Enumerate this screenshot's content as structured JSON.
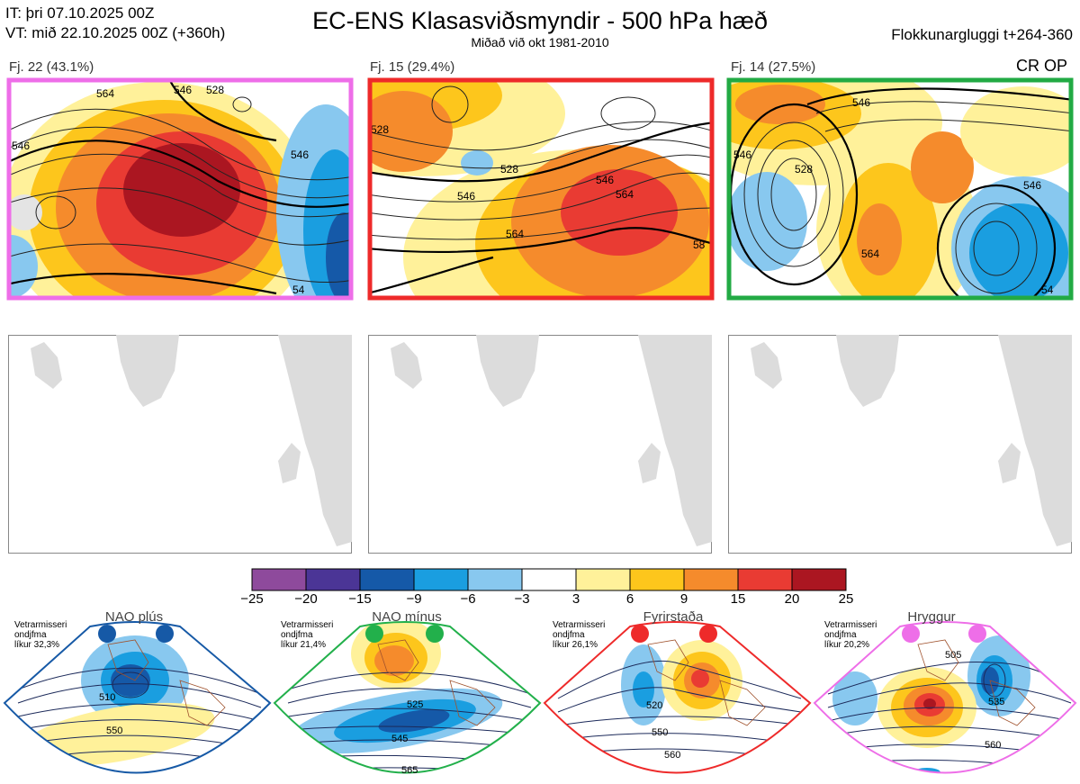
{
  "header": {
    "it_line": "IT: þri 07.10.2025 00Z",
    "vt_line": "VT: mið 22.10.2025 00Z  (+360h)",
    "title": "EC-ENS Klasasviðsmyndir - 500 hPa hæð",
    "subtitle": "Miðað við okt 1981-2010",
    "window": "Flokkunargluggi t+264-360"
  },
  "clusters": [
    {
      "label": "Fj. 22 (43.1%)",
      "frame_color": "#ee6ee8",
      "contour_labels": [
        "546",
        "564",
        "546",
        "546",
        "54",
        "528"
      ]
    },
    {
      "label": "Fj. 15 (29.4%)",
      "frame_color": "#ee2a2a",
      "contour_labels": [
        "528",
        "528",
        "546",
        "546",
        "564",
        "564",
        "58"
      ]
    },
    {
      "label": "Fj. 14 (27.5%)",
      "frame_color": "#22aa44",
      "contour_labels": [
        "546",
        "546",
        "528",
        "564",
        "546",
        "54"
      ]
    }
  ],
  "cr_op": "CR OP",
  "colorbar": {
    "ticks": [
      "−25",
      "−20",
      "−15",
      "−9",
      "−6",
      "−3",
      "3",
      "6",
      "9",
      "15",
      "20",
      "25"
    ],
    "colors": [
      "#8e4a9c",
      "#4b3596",
      "#1559a8",
      "#1a9ee0",
      "#88c8ef",
      "#ffffff",
      "#fff19a",
      "#fdc61c",
      "#f58b2c",
      "#e93b33",
      "#ab1621"
    ]
  },
  "regimes": [
    {
      "name": "NAO plús",
      "note": [
        "Vetrarmisseri",
        "ondjfma",
        "líkur 32,3%"
      ],
      "color": "#1659a6",
      "contour_labels": [
        "510",
        "550"
      ]
    },
    {
      "name": "NAO mínus",
      "note": [
        "Vetrarmisseri",
        "ondjfma",
        "líkur 21,4%"
      ],
      "color": "#22b04b",
      "contour_labels": [
        "525",
        "545",
        "565"
      ]
    },
    {
      "name": "Fyrirstaða",
      "note": [
        "Vetrarmisseri",
        "ondjfma",
        "líkur 26,1%"
      ],
      "color": "#ee2a2a",
      "contour_labels": [
        "520",
        "550",
        "560"
      ]
    },
    {
      "name": "Hryggur",
      "note": [
        "Vetrarmisseri",
        "ondjfma",
        "líkur 20,2%"
      ],
      "color": "#ee6ee8",
      "contour_labels": [
        "505",
        "535",
        "560"
      ]
    }
  ]
}
